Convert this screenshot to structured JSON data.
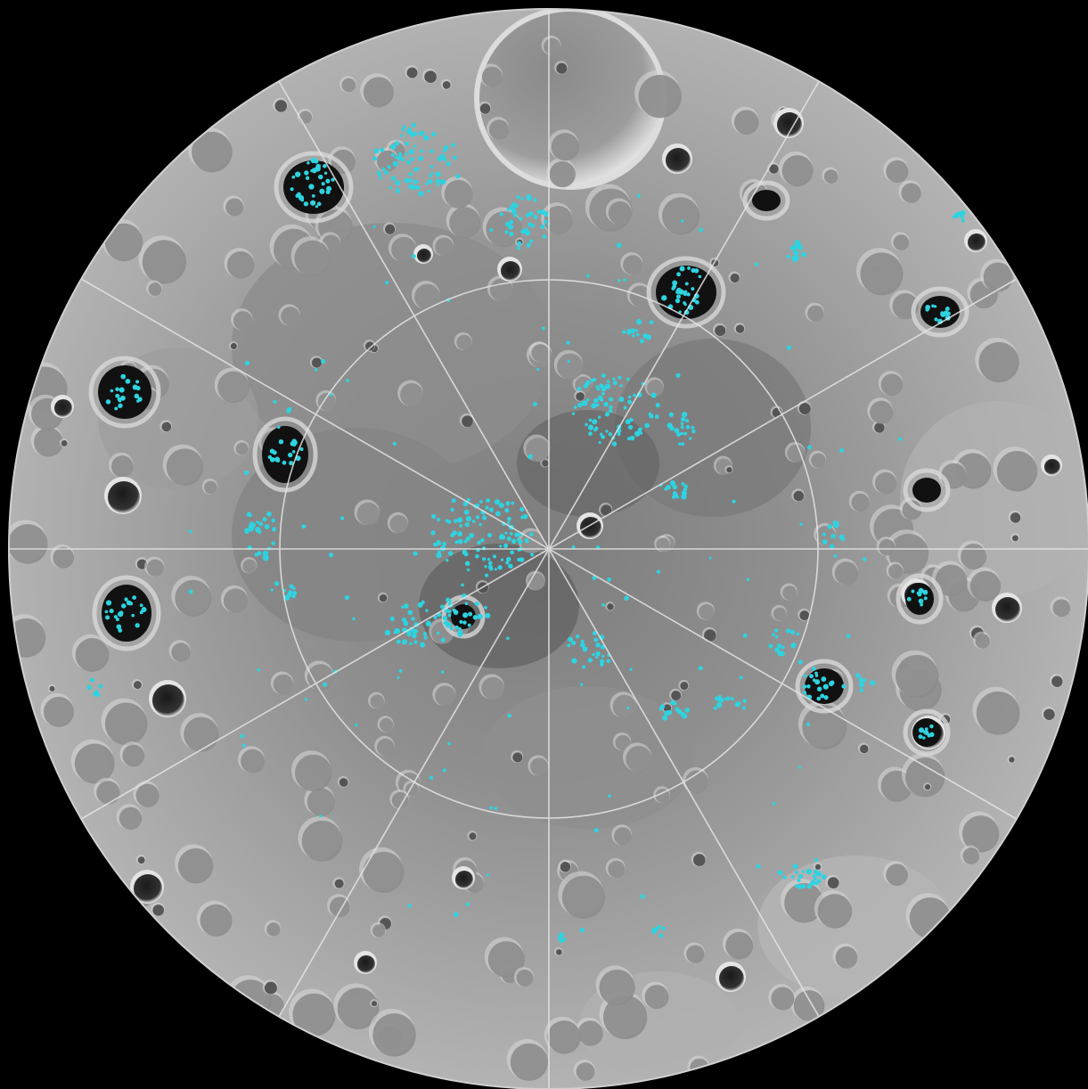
{
  "map": {
    "projection": "polar-stereographic",
    "pole": "south",
    "colors": {
      "background": "#000000",
      "surface_light": "#b9b9b9",
      "surface_mid": "#9a9a9a",
      "surface_dark": "#6f6f6f",
      "shadow": "#111111",
      "crater_rim": "#d8d8d8",
      "graticule": "#e6e6e6",
      "ice": "#2ed3e0"
    },
    "graticule": {
      "meridian_spacing_deg": 30,
      "latitude_circles": 2
    }
  }
}
